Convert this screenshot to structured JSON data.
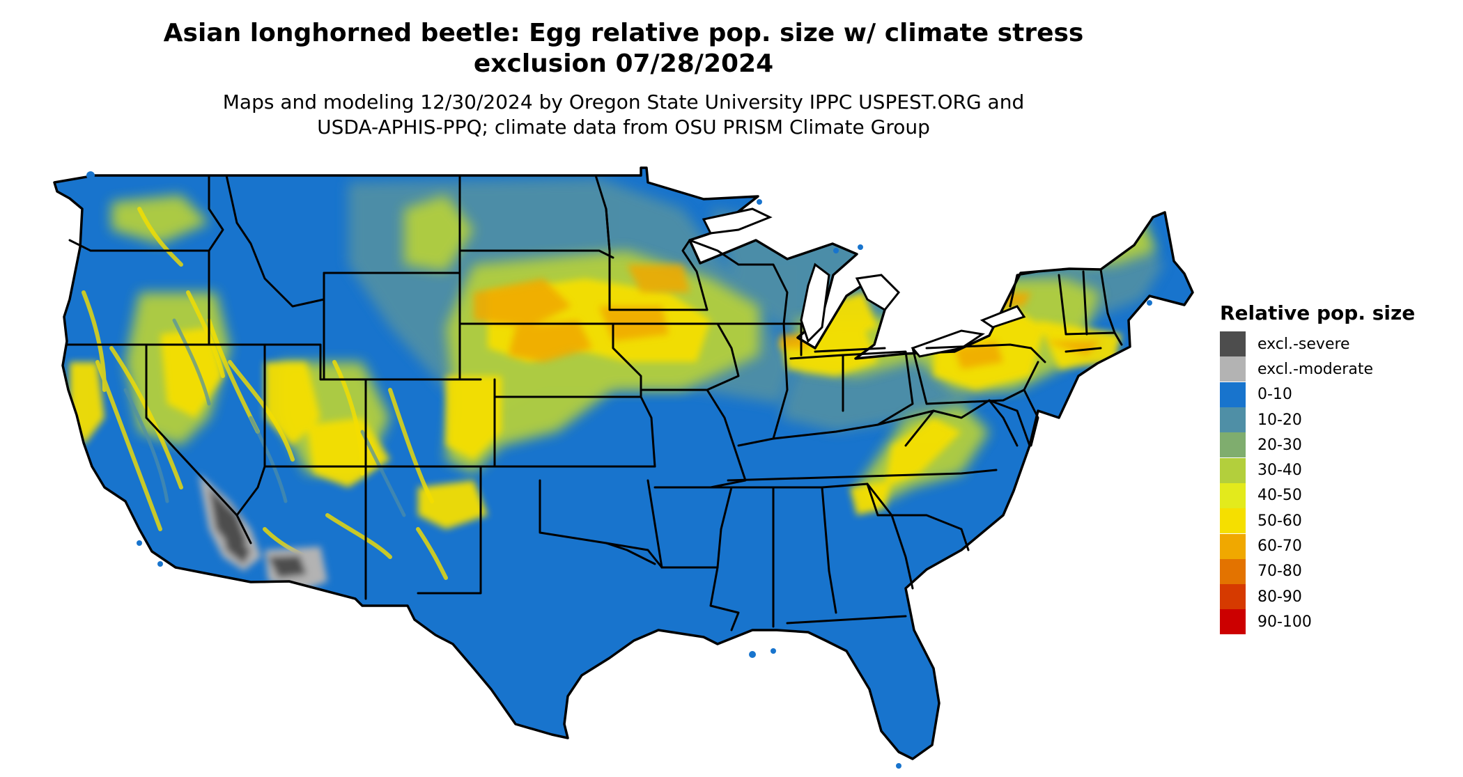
{
  "title": {
    "line1": "Asian longhorned beetle: Egg relative pop. size w/ climate stress",
    "line2": "exclusion 07/28/2024"
  },
  "subtitle": {
    "line1": "Maps and modeling 12/30/2024 by Oregon State University IPPC USPEST.ORG and",
    "line2": "USDA-APHIS-PPQ; climate data from OSU PRISM Climate Group"
  },
  "legend": {
    "title": "Relative pop. size",
    "items": [
      {
        "label": "excl.-severe",
        "color": "#4d4d4d"
      },
      {
        "label": "excl.-moderate",
        "color": "#b3b3b3"
      },
      {
        "label": "0-10",
        "color": "#1874cd"
      },
      {
        "label": "10-20",
        "color": "#4f8fa6"
      },
      {
        "label": "20-30",
        "color": "#7fad6e"
      },
      {
        "label": "30-40",
        "color": "#b3cf3c"
      },
      {
        "label": "40-50",
        "color": "#e3ea1c"
      },
      {
        "label": "50-60",
        "color": "#f5df00"
      },
      {
        "label": "60-70",
        "color": "#f0a800"
      },
      {
        "label": "70-80",
        "color": "#e37300"
      },
      {
        "label": "80-90",
        "color": "#d63a00"
      },
      {
        "label": "90-100",
        "color": "#cc0000"
      }
    ]
  },
  "map": {
    "region": "contiguous United States",
    "base_color": "#1874cd",
    "border_color": "#000000"
  }
}
